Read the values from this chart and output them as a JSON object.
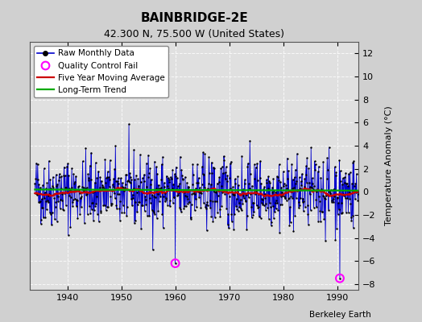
{
  "title": "BAINBRIDGE-2E",
  "subtitle": "42.300 N, 75.500 W (United States)",
  "ylabel": "Temperature Anomaly (°C)",
  "credit": "Berkeley Earth",
  "xlim": [
    1933,
    1994
  ],
  "ylim": [
    -8.5,
    13
  ],
  "yticks": [
    -8,
    -6,
    -4,
    -2,
    0,
    2,
    4,
    6,
    8,
    10,
    12
  ],
  "xticks": [
    1940,
    1950,
    1960,
    1970,
    1980,
    1990
  ],
  "bg_color": "#d0d0d0",
  "plot_bg_color": "#e0e0e0",
  "grid_color": "#ffffff",
  "line_color": "#0000cc",
  "marker_color": "#000000",
  "ma_color": "#cc0000",
  "trend_color": "#00aa00",
  "qc_color": "#ff00ff",
  "seed": 42,
  "start_year": 1934,
  "end_year": 1993,
  "qc_points": [
    [
      1960.0,
      -6.2
    ],
    [
      1990.5,
      -7.5
    ]
  ]
}
